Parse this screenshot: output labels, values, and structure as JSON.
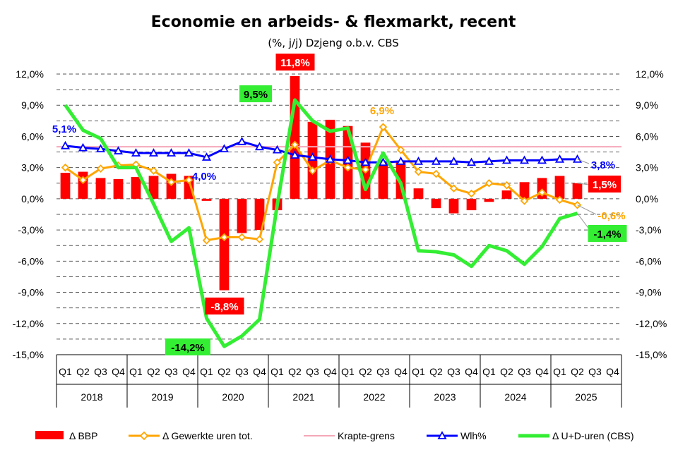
{
  "chart_data": {
    "type": "bar+line",
    "title": "Economie en arbeids- & flexmarkt, recent",
    "subtitle": "(%, j/j) Dzjeng o.b.v. CBS",
    "ylim": [
      -15,
      12
    ],
    "y_ticks": [
      "12,0%",
      "9,0%",
      "6,0%",
      "3,0%",
      "0,0%",
      "-3,0%",
      "-6,0%",
      "-9,0%",
      "-12,0%",
      "-15,0%"
    ],
    "y_tick_values": [
      12,
      9,
      6,
      3,
      0,
      -3,
      -6,
      -9,
      -12,
      -15
    ],
    "grid": true,
    "legend_position": "bottom",
    "categories": [
      "Q1",
      "Q2",
      "Q3",
      "Q4",
      "Q1",
      "Q2",
      "Q3",
      "Q4",
      "Q1",
      "Q2",
      "Q3",
      "Q4",
      "Q1",
      "Q2",
      "Q3",
      "Q4",
      "Q1",
      "Q2",
      "Q3",
      "Q4",
      "Q1",
      "Q2",
      "Q3",
      "Q4",
      "Q1",
      "Q2",
      "Q3",
      "Q4",
      "Q1",
      "Q2",
      "Q3",
      "Q4"
    ],
    "years": [
      "2018",
      "2019",
      "2020",
      "2021",
      "2022",
      "2023",
      "2024",
      "2025"
    ],
    "series": [
      {
        "name": "Δ BBP",
        "kind": "bar",
        "color": "#ff0000",
        "values": [
          2.5,
          2.6,
          2.0,
          1.9,
          2.1,
          2.2,
          2.4,
          2.2,
          -0.2,
          -8.8,
          -3.3,
          -3.0,
          -1.1,
          11.8,
          7.4,
          7.6,
          7.0,
          5.4,
          3.6,
          3.6,
          1.0,
          -0.9,
          -1.4,
          -1.1,
          -0.3,
          0.8,
          1.6,
          2.0,
          2.2,
          1.5,
          null,
          null
        ]
      },
      {
        "name": "Δ Gewerkte uren tot.",
        "kind": "line",
        "color": "#ffa500",
        "values": [
          3.0,
          1.8,
          2.9,
          3.2,
          3.3,
          2.7,
          1.6,
          1.8,
          -4.0,
          -3.7,
          -3.7,
          -3.9,
          3.5,
          5.2,
          2.7,
          3.7,
          3.0,
          2.8,
          6.9,
          4.7,
          2.6,
          2.4,
          1.0,
          0.5,
          1.5,
          1.3,
          -0.2,
          0.6,
          -0.1,
          -0.6,
          null,
          null
        ]
      },
      {
        "name": "Krapte-grens",
        "kind": "line",
        "color": "#f4a7b9",
        "values": [
          5.0,
          5.0,
          5.0,
          5.0,
          5.0,
          5.0,
          5.0,
          5.0,
          5.0,
          5.0,
          5.0,
          5.0,
          5.0,
          5.0,
          5.0,
          5.0,
          5.0,
          5.0,
          5.0,
          5.0,
          5.0,
          5.0,
          5.0,
          5.0,
          5.0,
          5.0,
          5.0,
          5.0,
          5.0,
          5.0,
          5.0,
          5.0
        ]
      },
      {
        "name": "Wlh%",
        "kind": "line",
        "color": "#0000ff",
        "values": [
          5.1,
          4.9,
          4.8,
          4.6,
          4.4,
          4.4,
          4.4,
          4.4,
          4.0,
          4.8,
          5.5,
          5.0,
          4.7,
          4.2,
          4.0,
          3.8,
          3.7,
          3.5,
          3.5,
          3.6,
          3.6,
          3.6,
          3.6,
          3.5,
          3.6,
          3.7,
          3.7,
          3.7,
          3.8,
          3.8,
          null,
          null
        ]
      },
      {
        "name": "Δ U+D-uren (CBS)",
        "kind": "line",
        "color": "#33ee33",
        "values": [
          9.0,
          6.6,
          5.8,
          3.0,
          3.0,
          -0.5,
          -4.1,
          -2.8,
          -11.5,
          -14.2,
          -13.2,
          -11.6,
          -0.6,
          9.5,
          7.5,
          6.5,
          6.8,
          0.9,
          4.4,
          1.5,
          -5.0,
          -5.1,
          -5.4,
          -6.5,
          -4.5,
          -5.0,
          -6.3,
          -4.6,
          -1.9,
          -1.4,
          null,
          null
        ]
      }
    ],
    "annotations": [
      {
        "text": "11,8%",
        "series": "Δ BBP",
        "index": 13,
        "bg": "#ff0000",
        "color": "#ffffff"
      },
      {
        "text": "-8,8%",
        "series": "Δ BBP",
        "index": 9,
        "bg": "#ff0000",
        "color": "#ffffff"
      },
      {
        "text": "1,5%",
        "series": "Δ BBP",
        "index": 29,
        "bg": "#ff0000",
        "color": "#ffffff"
      },
      {
        "text": "9,5%",
        "series": "Δ U+D-uren (CBS)",
        "index": 13,
        "bg": "#33ee33",
        "color": "#000000"
      },
      {
        "text": "-14,2%",
        "series": "Δ U+D-uren (CBS)",
        "index": 9,
        "bg": "#33ee33",
        "color": "#000000"
      },
      {
        "text": "-1,4%",
        "series": "Δ U+D-uren (CBS)",
        "index": 29,
        "bg": "#33ee33",
        "color": "#000000"
      },
      {
        "text": "5,1%",
        "series": "Wlh%",
        "index": 0,
        "bg": "",
        "color": "#0000ff"
      },
      {
        "text": "4,0%",
        "series": "Wlh%",
        "index": 8,
        "bg": "",
        "color": "#0000ff"
      },
      {
        "text": "3,8%",
        "series": "Wlh%",
        "index": 29,
        "bg": "",
        "color": "#0000ff"
      },
      {
        "text": "6,9%",
        "series": "Δ Gewerkte uren tot.",
        "index": 18,
        "bg": "",
        "color": "#ffa500"
      },
      {
        "text": "-0,6%",
        "series": "Δ Gewerkte uren tot.",
        "index": 29,
        "bg": "",
        "color": "#ffa500"
      }
    ]
  }
}
